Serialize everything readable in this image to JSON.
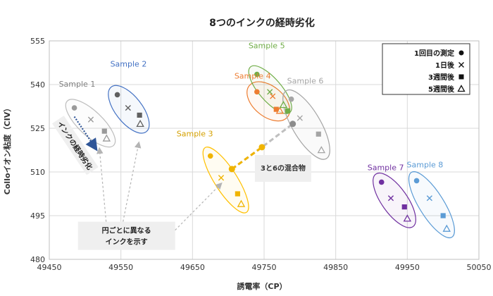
{
  "chart_data": {
    "type": "scatter",
    "title": "8つのインクの経時劣化",
    "xlabel": "誘電率（CP）",
    "ylabel": "Colloイオン粘度（CIV）",
    "xlim": [
      49450,
      50050
    ],
    "ylim": [
      480,
      555
    ],
    "xticks": [
      49450,
      49550,
      49650,
      49750,
      49850,
      49950,
      50050
    ],
    "yticks": [
      480,
      495,
      510,
      525,
      540,
      555
    ],
    "grid": true,
    "legend_position": "top-right",
    "legend": [
      {
        "label": "1回目の測定",
        "marker": "circle"
      },
      {
        "label": "1日後",
        "marker": "x"
      },
      {
        "label": "3週間後",
        "marker": "square"
      },
      {
        "label": "5週間後",
        "marker": "triangle"
      }
    ],
    "series": [
      {
        "name": "Sample 1",
        "color": "#9a9a9a",
        "ellipse_color": "#bdbdbd",
        "label_color": "#7f7f7f",
        "points": [
          {
            "marker": "circle",
            "x": 49485,
            "y": 532
          },
          {
            "marker": "x",
            "x": 49508,
            "y": 528
          },
          {
            "marker": "square",
            "x": 49527,
            "y": 524
          },
          {
            "marker": "triangle",
            "x": 49530,
            "y": 521.5
          }
        ]
      },
      {
        "name": "Sample 2",
        "color": "#606060",
        "ellipse_color": "#4472c4",
        "label_color": "#4472c4",
        "points": [
          {
            "marker": "circle",
            "x": 49545,
            "y": 536.5
          },
          {
            "marker": "x",
            "x": 49560,
            "y": 532
          },
          {
            "marker": "square",
            "x": 49576,
            "y": 529.5
          },
          {
            "marker": "triangle",
            "x": 49577,
            "y": 526.5
          }
        ]
      },
      {
        "name": "Sample 3",
        "color": "#f0b400",
        "ellipse_color": "#ffc000",
        "label_color": "#d4a000",
        "points": [
          {
            "marker": "circle",
            "x": 49675,
            "y": 515.5
          },
          {
            "marker": "x",
            "x": 49690,
            "y": 508
          },
          {
            "marker": "square",
            "x": 49713,
            "y": 502.5
          },
          {
            "marker": "triangle",
            "x": 49718,
            "y": 499
          }
        ]
      },
      {
        "name": "Sample 4",
        "color": "#ed7d31",
        "ellipse_color": "#ed7d31",
        "label_color": "#ed7d31",
        "points": [
          {
            "marker": "circle",
            "x": 49740,
            "y": 537.5
          },
          {
            "marker": "x",
            "x": 49762,
            "y": 536
          },
          {
            "marker": "square",
            "x": 49767,
            "y": 531.5
          },
          {
            "marker": "triangle",
            "x": 49772,
            "y": 531
          }
        ]
      },
      {
        "name": "Sample 5",
        "color": "#70ad47",
        "ellipse_color": "#70ad47",
        "label_color": "#70ad47",
        "points": [
          {
            "marker": "circle",
            "x": 49740,
            "y": 543.5
          },
          {
            "marker": "x",
            "x": 49758,
            "y": 537.5
          },
          {
            "marker": "square",
            "x": 49783,
            "y": 531
          },
          {
            "marker": "triangle",
            "x": 49777,
            "y": 533
          }
        ]
      },
      {
        "name": "Sample 6",
        "color": "#a5a5a5",
        "ellipse_color": "#a5a5a5",
        "label_color": "#a5a5a5",
        "points": [
          {
            "marker": "circle",
            "x": 49788,
            "y": 535
          },
          {
            "marker": "x",
            "x": 49800,
            "y": 528.5
          },
          {
            "marker": "square",
            "x": 49826,
            "y": 523
          },
          {
            "marker": "triangle",
            "x": 49830,
            "y": 517.5
          }
        ]
      },
      {
        "name": "Sample 7",
        "color": "#7030a0",
        "ellipse_color": "#7030a0",
        "label_color": "#7030a0",
        "points": [
          {
            "marker": "circle",
            "x": 49914,
            "y": 506.5
          },
          {
            "marker": "x",
            "x": 49927,
            "y": 501
          },
          {
            "marker": "square",
            "x": 49946,
            "y": 498
          },
          {
            "marker": "triangle",
            "x": 49950,
            "y": 494
          }
        ]
      },
      {
        "name": "Sample 8",
        "color": "#5b9bd5",
        "ellipse_color": "#5b9bd5",
        "label_color": "#5b9bd5",
        "points": [
          {
            "marker": "circle",
            "x": 49963,
            "y": 507
          },
          {
            "marker": "x",
            "x": 49981,
            "y": 501
          },
          {
            "marker": "square",
            "x": 50000,
            "y": 495
          },
          {
            "marker": "triangle",
            "x": 50005,
            "y": 490.5
          }
        ]
      }
    ],
    "mixture": {
      "label": "3と6の混合物",
      "color": "#f0b400",
      "points": [
        {
          "x": 49705,
          "y": 511
        },
        {
          "x": 49747,
          "y": 518.5
        },
        {
          "x": 49790,
          "y": 526.5
        }
      ]
    },
    "annotations": {
      "aging_arrow": "インクの経時劣化",
      "circle_note_line1": "円ごとに異なる",
      "circle_note_line2": "インクを示す"
    }
  }
}
